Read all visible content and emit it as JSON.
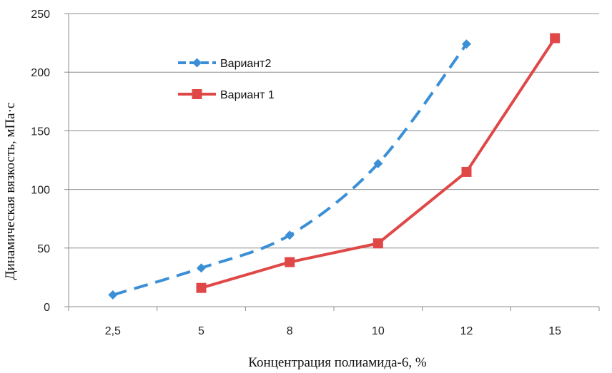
{
  "chart_data": {
    "type": "line",
    "categories": [
      "2,5",
      "5",
      "8",
      "10",
      "12",
      "15"
    ],
    "xlabel": "Концентрация полиамида-6, %",
    "ylabel": "Динамическая вязкость, мПа·с",
    "ylim": [
      0,
      250
    ],
    "yticks": [
      "0",
      "50",
      "100",
      "150",
      "200",
      "250"
    ],
    "grid": true,
    "legend_position": "upper-left",
    "series": [
      {
        "name": "Вариант2",
        "color": "#3a8fd6",
        "marker": "diamond",
        "dash": true,
        "values": [
          10,
          33,
          61,
          122,
          224,
          null
        ]
      },
      {
        "name": "Вариант 1",
        "color": "#e04848",
        "marker": "square",
        "dash": false,
        "values": [
          null,
          16,
          38,
          54,
          115,
          229
        ]
      }
    ]
  }
}
